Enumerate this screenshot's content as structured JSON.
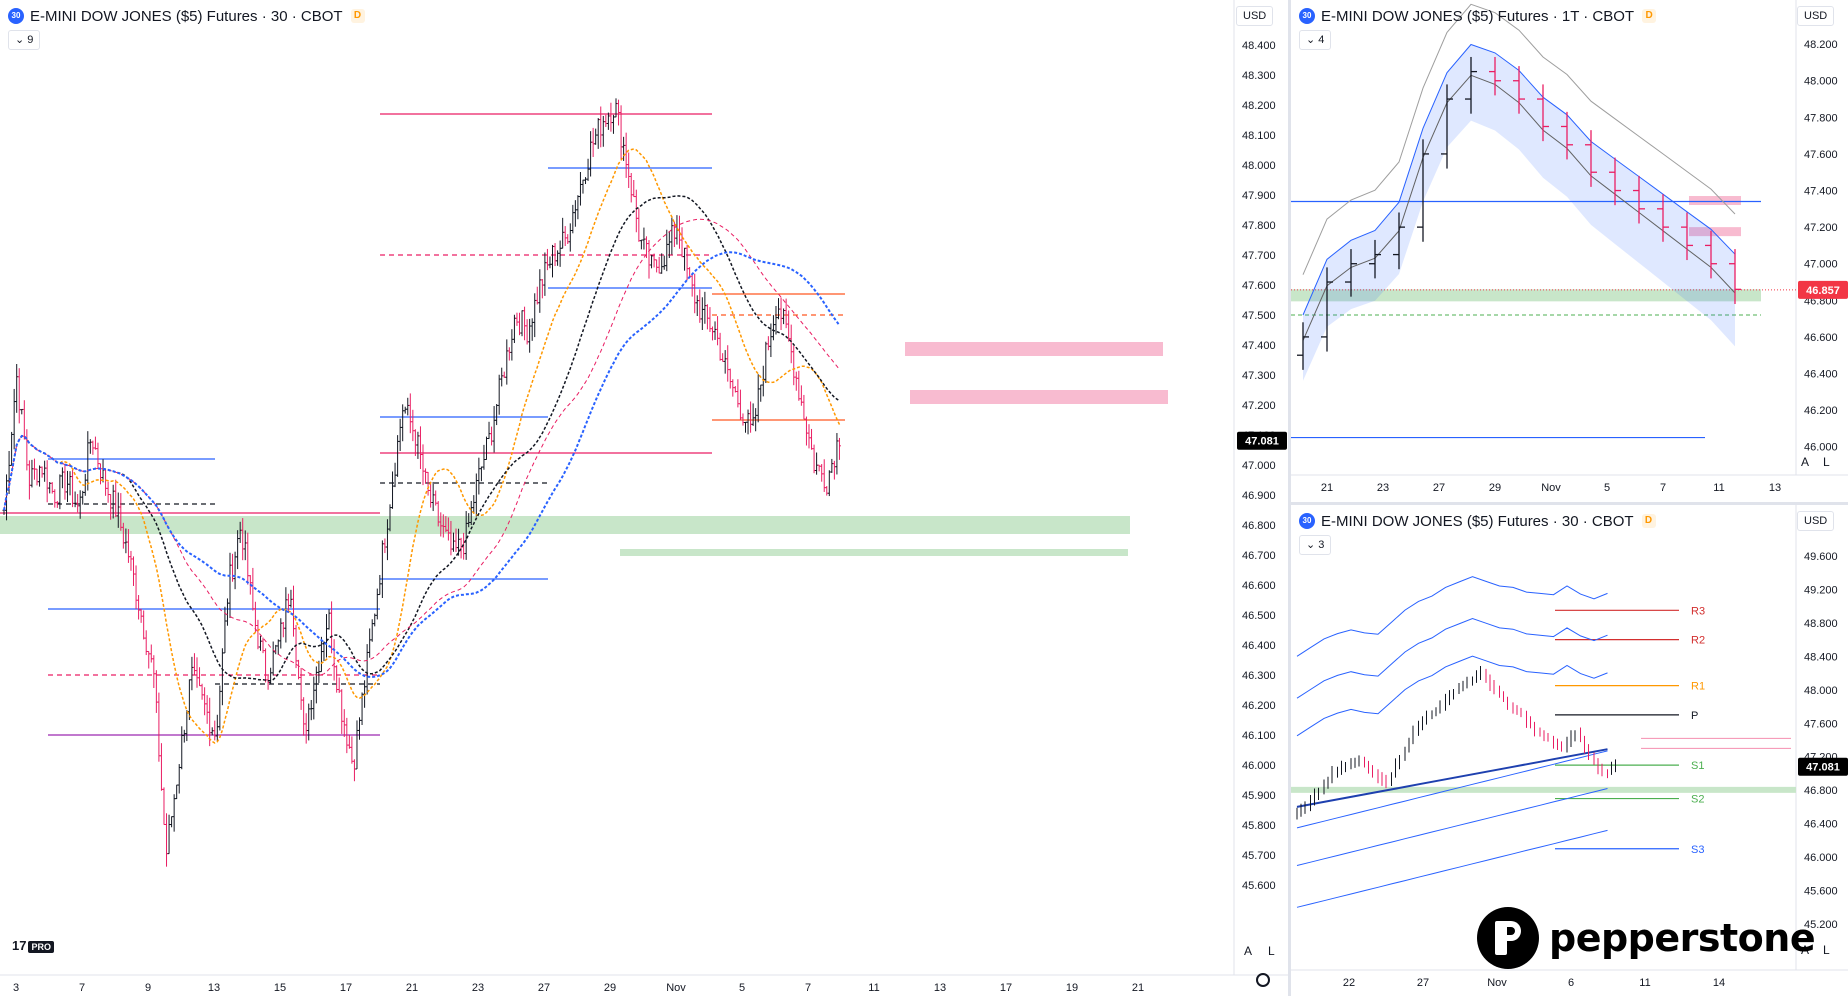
{
  "panels": {
    "main": {
      "title": "E-MINI DOW JONES ($5) Futures · 30 · CBOT",
      "badge": "30",
      "d_badge": "D",
      "collapse": "9",
      "currency": "USD",
      "auto": "A",
      "log": "L"
    },
    "top_right": {
      "title": "E-MINI DOW JONES ($5) Futures · 1T · CBOT",
      "badge": "30",
      "d_badge": "D",
      "collapse": "4",
      "currency": "USD",
      "auto": "A",
      "log": "L"
    },
    "bottom_right": {
      "title": "E-MINI DOW JONES ($5) Futures · 30 · CBOT",
      "badge": "30",
      "d_badge": "D",
      "collapse": "3",
      "currency": "USD",
      "auto": "A",
      "log": "L"
    }
  },
  "branding": {
    "tv": "17",
    "tv_pro": "PRO",
    "pepperstone": "pepperstone"
  },
  "colors": {
    "up": "#131722",
    "down": "#e91e63",
    "green_zone": "#c8e6c9",
    "pink_zone": "#f8bbd0",
    "blue": "#2962ff",
    "orange": "#ff9800",
    "pink_line": "#e91e63",
    "price_label": "#000000",
    "price_label_red": "#f23645"
  },
  "chart_data": [
    {
      "id": "main",
      "type": "candlestick",
      "title": "E-MINI DOW JONES ($5) Futures · 30 · CBOT",
      "ylim": [
        45.5,
        48.45
      ],
      "y_ticks": [
        "48.400",
        "48.300",
        "48.200",
        "48.100",
        "48.000",
        "47.900",
        "47.800",
        "47.700",
        "47.600",
        "47.500",
        "47.400",
        "47.300",
        "47.200",
        "47.100",
        "47.000",
        "46.900",
        "46.800",
        "46.700",
        "46.600",
        "46.500",
        "46.400",
        "46.300",
        "46.200",
        "46.100",
        "46.000",
        "45.900",
        "45.800",
        "45.700",
        "45.600"
      ],
      "x_ticks": [
        "3",
        "7",
        "9",
        "13",
        "15",
        "17",
        "21",
        "23",
        "27",
        "29",
        "Nov",
        "5",
        "7",
        "11",
        "13",
        "17",
        "19",
        "21"
      ],
      "current_price": "47.081",
      "price_path": [
        46.85,
        47.3,
        46.95,
        47.0,
        46.9,
        46.95,
        46.85,
        47.1,
        46.95,
        46.85,
        46.7,
        46.5,
        46.3,
        45.7,
        46.0,
        46.3,
        46.2,
        46.1,
        46.6,
        46.8,
        46.5,
        46.3,
        46.4,
        46.6,
        46.1,
        46.3,
        46.5,
        46.2,
        46.0,
        46.3,
        46.6,
        46.9,
        47.2,
        47.1,
        46.9,
        46.8,
        46.7,
        46.75,
        46.95,
        47.1,
        47.3,
        47.5,
        47.45,
        47.6,
        47.7,
        47.75,
        47.9,
        48.05,
        48.15,
        48.2,
        48.0,
        47.75,
        47.65,
        47.7,
        47.8,
        47.6,
        47.5,
        47.45,
        47.3,
        47.2,
        47.1,
        47.35,
        47.55,
        47.4,
        47.2,
        47.0,
        46.95,
        47.1
      ]
    },
    {
      "id": "top_right",
      "type": "candlestick",
      "title": "E-MINI DOW JONES ($5) Futures · 1T · CBOT",
      "ylim": [
        45.9,
        48.25
      ],
      "y_ticks": [
        "48.200",
        "48.000",
        "47.800",
        "47.600",
        "47.400",
        "47.200",
        "47.000",
        "46.800",
        "46.600",
        "46.400",
        "46.200",
        "46.000"
      ],
      "x_ticks": [
        "21",
        "23",
        "27",
        "29",
        "Nov",
        "5",
        "7",
        "11",
        "13"
      ],
      "current_price": "46.857",
      "closes": [
        46.6,
        46.9,
        47.0,
        47.05,
        47.2,
        47.6,
        47.9,
        48.05,
        48.0,
        47.9,
        47.75,
        47.65,
        47.5,
        47.4,
        47.3,
        47.2,
        47.1,
        47.0,
        46.86
      ]
    },
    {
      "id": "bottom_right",
      "type": "line",
      "title": "E-MINI DOW JONES ($5) Futures · 30 · CBOT",
      "ylim": [
        44.95,
        49.85
      ],
      "y_ticks": [
        "49.600",
        "49.200",
        "48.800",
        "48.400",
        "48.000",
        "47.600",
        "47.200",
        "46.800",
        "46.400",
        "46.000",
        "45.600",
        "45.200"
      ],
      "x_ticks": [
        "22",
        "27",
        "Nov",
        "6",
        "11",
        "14"
      ],
      "current_price": "47.081",
      "pivots": [
        {
          "name": "R3",
          "value": 48.95,
          "color": "#d32f2f"
        },
        {
          "name": "R2",
          "value": 48.6,
          "color": "#d32f2f"
        },
        {
          "name": "R1",
          "value": 48.05,
          "color": "#ff9800"
        },
        {
          "name": "P",
          "value": 47.7,
          "color": "#131722"
        },
        {
          "name": "S1",
          "value": 47.1,
          "color": "#4caf50"
        },
        {
          "name": "S2",
          "value": 46.7,
          "color": "#4caf50"
        },
        {
          "name": "S3",
          "value": 46.1,
          "color": "#2962ff"
        }
      ],
      "closes": [
        46.6,
        46.8,
        47.0,
        47.1,
        47.15,
        47.0,
        46.9,
        47.2,
        47.5,
        47.7,
        47.8,
        48.0,
        48.1,
        48.2,
        48.0,
        47.8,
        47.7,
        47.5,
        47.4,
        47.3,
        47.5,
        47.2,
        47.0,
        47.1
      ]
    }
  ]
}
